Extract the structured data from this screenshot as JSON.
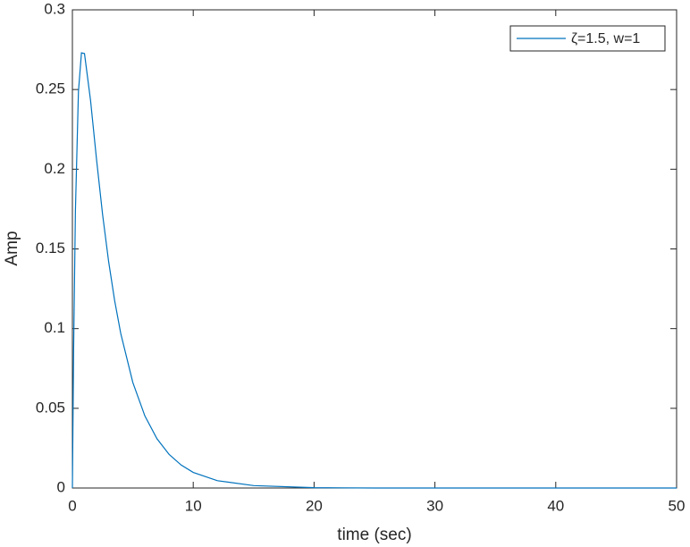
{
  "chart_data": {
    "type": "line",
    "x_label": "time (sec)",
    "y_label": "Amp",
    "x": [
      0,
      0.1,
      0.25,
      0.5,
      0.75,
      1,
      1.5,
      2,
      2.5,
      3,
      3.5,
      4,
      5,
      6,
      7,
      8,
      9,
      10,
      12,
      15,
      20,
      25,
      30,
      40,
      50
    ],
    "series": [
      {
        "name": "ζ=1.5, w=1",
        "color": "#0072bd",
        "values": [
          0,
          0.0862,
          0.174,
          0.2487,
          0.273,
          0.2726,
          0.2433,
          0.206,
          0.1715,
          0.142,
          0.1174,
          0.097,
          0.0662,
          0.0452,
          0.0309,
          0.0211,
          0.0144,
          0.0098,
          0.0046,
          0.0015,
          0.0002,
          0,
          0,
          0,
          0
        ]
      }
    ],
    "xlim": [
      0,
      50
    ],
    "xticks": [
      0,
      10,
      20,
      30,
      40,
      50
    ],
    "ylim": [
      0,
      0.3
    ],
    "yticks": [
      0,
      0.05,
      0.1,
      0.15,
      0.2,
      0.25,
      0.3
    ],
    "legend": "upper right"
  }
}
